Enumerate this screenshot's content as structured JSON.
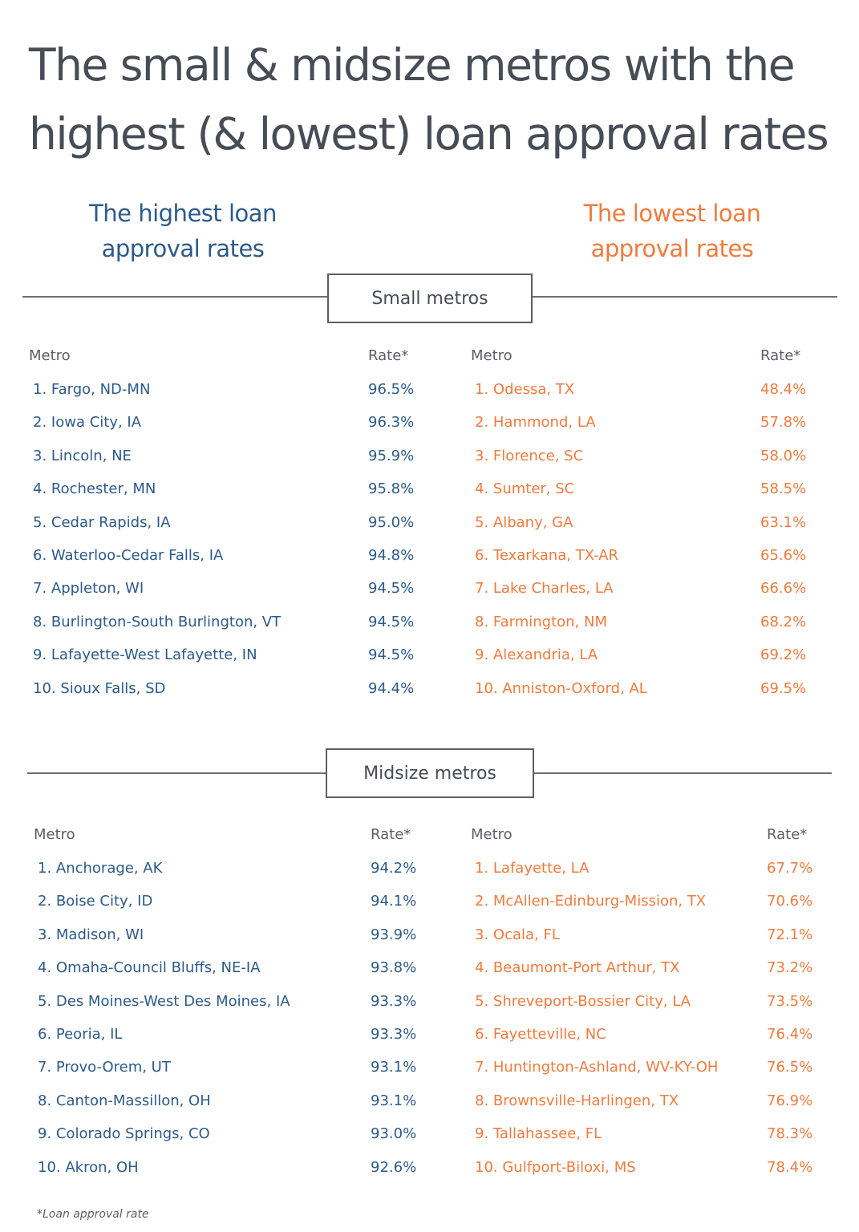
{
  "title": {
    "line1": "The small & midsize metros with the",
    "line2": "highest (& lowest) loan approval rates"
  },
  "column_headers": {
    "highest": {
      "line1": "The highest loan",
      "line2": "approval rates"
    },
    "lowest": {
      "line1": "The lowest loan",
      "line2": "approval rates"
    }
  },
  "colors": {
    "highest": "#2c5a8a",
    "lowest": "#ef7b3e",
    "title": "#474c55"
  },
  "sections": [
    {
      "label": "Small metros",
      "highest": {
        "headers": {
          "metro": "Metro",
          "rate": "Rate*"
        },
        "rows": [
          {
            "metro": "1. Fargo, ND-MN",
            "rate": "96.5%"
          },
          {
            "metro": "2. Iowa City, IA",
            "rate": "96.3%"
          },
          {
            "metro": "3. Lincoln, NE",
            "rate": "95.9%"
          },
          {
            "metro": "4. Rochester, MN",
            "rate": "95.8%"
          },
          {
            "metro": "5. Cedar Rapids, IA",
            "rate": "95.0%"
          },
          {
            "metro": "6. Waterloo-Cedar Falls, IA",
            "rate": "94.8%"
          },
          {
            "metro": "7. Appleton, WI",
            "rate": "94.5%"
          },
          {
            "metro": "8. Burlington-South Burlington, VT",
            "rate": "94.5%"
          },
          {
            "metro": "9. Lafayette-West Lafayette, IN",
            "rate": "94.5%"
          },
          {
            "metro": "10. Sioux Falls, SD",
            "rate": "94.4%"
          }
        ]
      },
      "lowest": {
        "headers": {
          "metro": "Metro",
          "rate": "Rate*"
        },
        "rows": [
          {
            "metro": "1. Odessa, TX",
            "rate": "48.4%"
          },
          {
            "metro": "2. Hammond, LA",
            "rate": "57.8%"
          },
          {
            "metro": "3. Florence, SC",
            "rate": "58.0%"
          },
          {
            "metro": "4. Sumter, SC",
            "rate": "58.5%"
          },
          {
            "metro": "5. Albany, GA",
            "rate": "63.1%"
          },
          {
            "metro": "6. Texarkana, TX-AR",
            "rate": "65.6%"
          },
          {
            "metro": "7. Lake Charles, LA",
            "rate": "66.6%"
          },
          {
            "metro": "8. Farmington, NM",
            "rate": "68.2%"
          },
          {
            "metro": "9. Alexandria, LA",
            "rate": "69.2%"
          },
          {
            "metro": "10. Anniston-Oxford, AL",
            "rate": "69.5%"
          }
        ]
      }
    },
    {
      "label": "Midsize metros",
      "highest": {
        "headers": {
          "metro": "Metro",
          "rate": "Rate*"
        },
        "rows": [
          {
            "metro": "1. Anchorage, AK",
            "rate": "94.2%"
          },
          {
            "metro": "2. Boise City, ID",
            "rate": "94.1%"
          },
          {
            "metro": "3. Madison, WI",
            "rate": "93.9%"
          },
          {
            "metro": "4. Omaha-Council Bluffs, NE-IA",
            "rate": "93.8%"
          },
          {
            "metro": "5. Des Moines-West Des Moines, IA",
            "rate": "93.3%"
          },
          {
            "metro": "6. Peoria, IL",
            "rate": "93.3%"
          },
          {
            "metro": "7. Provo-Orem, UT",
            "rate": "93.1%"
          },
          {
            "metro": "8. Canton-Massillon, OH",
            "rate": "93.1%"
          },
          {
            "metro": "9. Colorado Springs, CO",
            "rate": "93.0%"
          },
          {
            "metro": "10. Akron, OH",
            "rate": "92.6%"
          }
        ]
      },
      "lowest": {
        "headers": {
          "metro": "Metro",
          "rate": "Rate*"
        },
        "rows": [
          {
            "metro": "1. Lafayette, LA",
            "rate": "67.7%"
          },
          {
            "metro": "2. McAllen-Edinburg-Mission, TX",
            "rate": "70.6%"
          },
          {
            "metro": "3. Ocala, FL",
            "rate": "72.1%"
          },
          {
            "metro": "4. Beaumont-Port Arthur, TX",
            "rate": "73.2%"
          },
          {
            "metro": "5. Shreveport-Bossier City, LA",
            "rate": "73.5%"
          },
          {
            "metro": "6. Fayetteville, NC",
            "rate": "76.4%"
          },
          {
            "metro": "7. Huntington-Ashland, WV-KY-OH",
            "rate": "76.5%"
          },
          {
            "metro": "8. Brownsville-Harlingen, TX",
            "rate": "76.9%"
          },
          {
            "metro": "9. Tallahassee, FL",
            "rate": "78.3%"
          },
          {
            "metro": "10. Gulfport-Biloxi, MS",
            "rate": "78.4%"
          }
        ]
      }
    }
  ],
  "footnote": "*Loan approval rate"
}
